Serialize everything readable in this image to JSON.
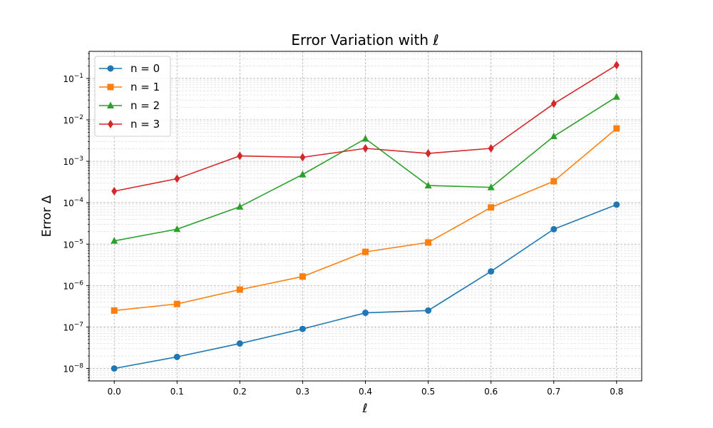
{
  "chart_data": {
    "type": "line",
    "title": "Error Variation with ℓ",
    "xlabel": "ℓ",
    "ylabel": "Error Δ",
    "x": [
      0.0,
      0.1,
      0.2,
      0.3,
      0.4,
      0.5,
      0.6,
      0.7,
      0.8
    ],
    "x_tick_labels": [
      "0.0",
      "0.1",
      "0.2",
      "0.3",
      "0.4",
      "0.5",
      "0.6",
      "0.7",
      "0.8"
    ],
    "xlim": [
      -0.04,
      0.84
    ],
    "yscale": "log",
    "ylim": [
      5e-09,
      0.45
    ],
    "y_ticks": [
      {
        "value": 1e-08,
        "base": "10",
        "exp": "−8"
      },
      {
        "value": 1e-07,
        "base": "10",
        "exp": "−7"
      },
      {
        "value": 1e-06,
        "base": "10",
        "exp": "−6"
      },
      {
        "value": 1e-05,
        "base": "10",
        "exp": "−5"
      },
      {
        "value": 0.0001,
        "base": "10",
        "exp": "−4"
      },
      {
        "value": 0.001,
        "base": "10",
        "exp": "−3"
      },
      {
        "value": 0.01,
        "base": "10",
        "exp": "−2"
      },
      {
        "value": 0.1,
        "base": "10",
        "exp": "−1"
      }
    ],
    "grid": {
      "major": true,
      "minor": true
    },
    "legend": "top-left",
    "series": [
      {
        "name": "n = 0",
        "color": "#1f77b4",
        "marker": "circle",
        "values": [
          1e-08,
          1.9e-08,
          4e-08,
          9e-08,
          2.2e-07,
          2.5e-07,
          2.2e-06,
          2.3e-05,
          9e-05
        ]
      },
      {
        "name": "n = 1",
        "color": "#ff7f0e",
        "marker": "square",
        "values": [
          2.5e-07,
          3.6e-07,
          8e-07,
          1.65e-06,
          6.5e-06,
          1.1e-05,
          7.7e-05,
          0.00033,
          0.0062
        ]
      },
      {
        "name": "n = 2",
        "color": "#2ca02c",
        "marker": "triangle",
        "values": [
          1.2e-05,
          2.3e-05,
          8e-05,
          0.00048,
          0.0035,
          0.00026,
          0.000235,
          0.004,
          0.036
        ]
      },
      {
        "name": "n = 3",
        "color": "#d62728",
        "marker": "diamond",
        "values": [
          0.00019,
          0.00038,
          0.00135,
          0.00125,
          0.00205,
          0.00155,
          0.00205,
          0.0245,
          0.21
        ]
      }
    ]
  }
}
